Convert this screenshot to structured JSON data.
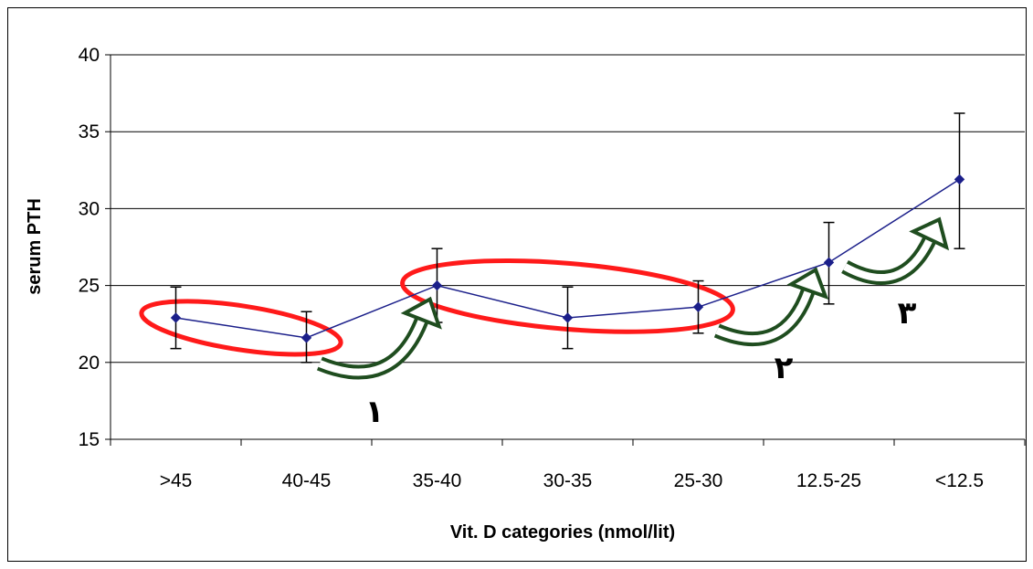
{
  "chart_data": {
    "type": "line",
    "title": "",
    "xlabel": "Vit. D categories (nmol/lit)",
    "ylabel": "serum PTH",
    "ylim": [
      15,
      40
    ],
    "yticks": [
      15,
      20,
      25,
      30,
      35,
      40
    ],
    "grid": "horizontal",
    "categories": [
      ">45",
      "40-45",
      "35-40",
      "30-35",
      "25-30",
      "12.5-25",
      "<12.5"
    ],
    "series": [
      {
        "values": [
          22.9,
          21.6,
          25.0,
          22.9,
          23.6,
          26.5,
          31.9
        ],
        "error_high": [
          24.9,
          23.3,
          27.4,
          24.9,
          25.3,
          29.1,
          36.2
        ],
        "error_low": [
          20.9,
          20.0,
          22.6,
          20.9,
          21.9,
          23.8,
          27.4
        ],
        "color": "#1b1f8a"
      }
    ],
    "annotations": {
      "numbers": [
        "١",
        "٢",
        "٣"
      ],
      "ellipse_color": "#ff1a1a",
      "arrow_color": "#1f4d1f"
    }
  }
}
